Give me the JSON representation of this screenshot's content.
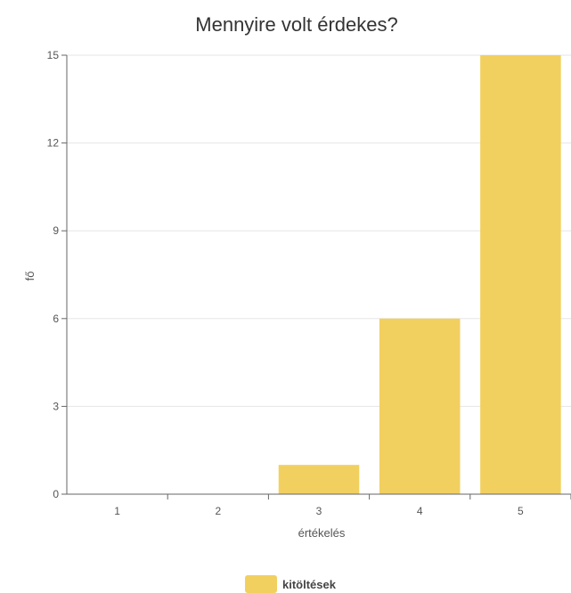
{
  "chart_data": {
    "type": "bar",
    "title": "Mennyire volt érdekes?",
    "xlabel": "értékelés",
    "ylabel": "fő",
    "categories": [
      "1",
      "2",
      "3",
      "4",
      "5"
    ],
    "series": [
      {
        "name": "kitöltések",
        "values": [
          0,
          0,
          1,
          6,
          15
        ],
        "color": "#f2d060"
      }
    ],
    "ylim": [
      0,
      15
    ],
    "yticks": [
      0,
      3,
      6,
      9,
      12,
      15
    ],
    "grid": true,
    "legend": "bottom"
  }
}
